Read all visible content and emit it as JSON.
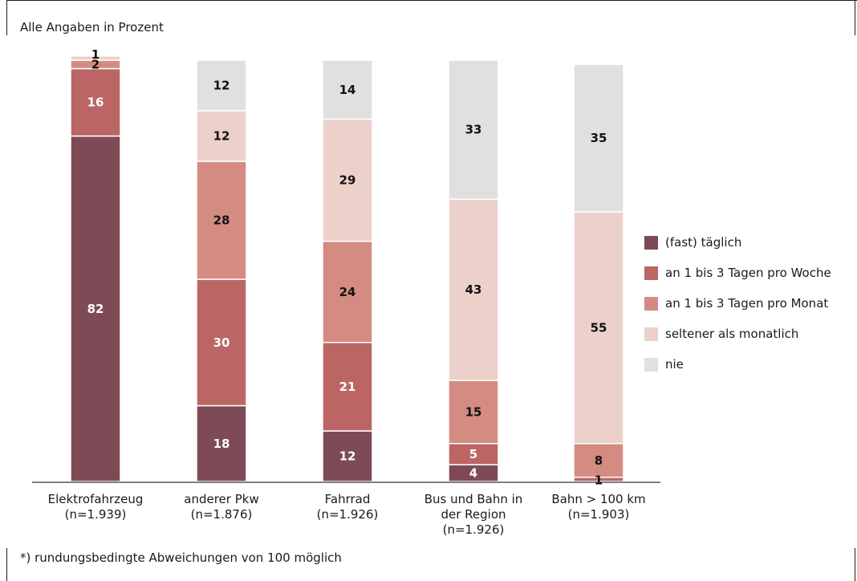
{
  "subtitle": "Alle Angaben in Prozent",
  "footnote": "*) rundungsbedingte Abweichungen von 100 möglich",
  "colors": {
    "taeglich": "#7e4a55",
    "woche": "#bb6565",
    "monat": "#d48c82",
    "seltener": "#ecd1cb",
    "nie": "#e0e0e0"
  },
  "chart_data": {
    "type": "bar",
    "stacked": true,
    "categories": [
      [
        "Elektrofahrzeug",
        "(n=1.939)"
      ],
      [
        "anderer Pkw",
        "(n=1.876)"
      ],
      [
        "Fahrrad",
        "(n=1.926)"
      ],
      [
        "Bus und Bahn in",
        "der Region",
        "(n=1.926)"
      ],
      [
        "Bahn > 100 km",
        "(n=1.903)"
      ]
    ],
    "series": [
      {
        "name": "(fast) täglich",
        "color_key": "taeglich",
        "label_color": "#ffffff",
        "values": [
          82,
          18,
          12,
          4,
          0
        ]
      },
      {
        "name": "an 1 bis 3 Tagen pro Woche",
        "color_key": "woche",
        "label_color": "#ffffff",
        "values": [
          16,
          30,
          21,
          5,
          1
        ]
      },
      {
        "name": "an 1 bis 3 Tagen pro Monat",
        "color_key": "monat",
        "label_color": "#111111",
        "values": [
          2,
          28,
          24,
          15,
          8
        ]
      },
      {
        "name": "seltener als monatlich",
        "color_key": "seltener",
        "label_color": "#111111",
        "values": [
          1,
          12,
          29,
          43,
          55
        ]
      },
      {
        "name": "nie",
        "color_key": "nie",
        "label_color": "#111111",
        "values": [
          0,
          12,
          14,
          33,
          35
        ]
      }
    ],
    "ylim": [
      0,
      100
    ],
    "grid": false,
    "legend_position": "right"
  }
}
